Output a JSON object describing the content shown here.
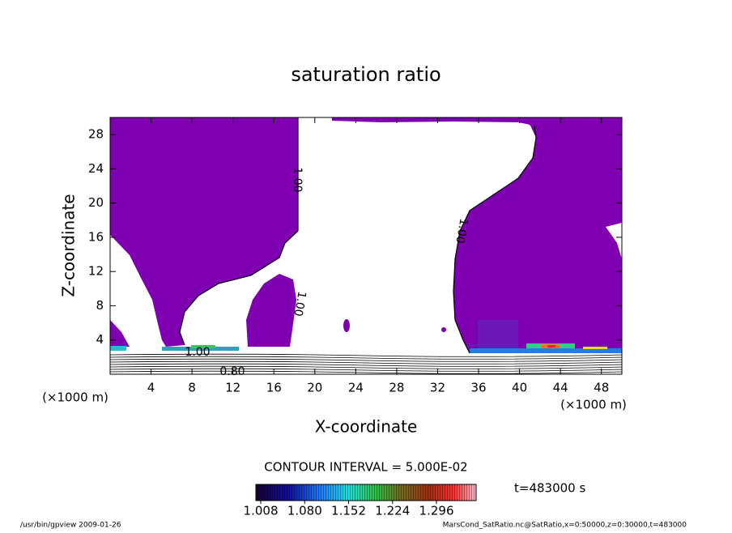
{
  "chart_data": {
    "type": "contour",
    "title": "saturation ratio",
    "x_label": "X-coordinate",
    "y_label": "Z-coordinate",
    "x_unit": "(×1000 m)",
    "y_unit": "(×1000 m)",
    "xlim": [
      0,
      50
    ],
    "ylim": [
      0,
      30
    ],
    "xticks": [
      4,
      8,
      12,
      16,
      20,
      24,
      28,
      32,
      36,
      40,
      44,
      48
    ],
    "yticks": [
      4,
      8,
      12,
      16,
      20,
      24,
      28
    ],
    "fill_color": "#7f00b0",
    "contour_interval": "CONTOUR INTERVAL = 5.000E-02",
    "contour_labels": [
      {
        "value": 1,
        "label": "1.00"
      },
      {
        "value": 1,
        "label": "1.00"
      },
      {
        "value": 1,
        "label": "1.00"
      },
      {
        "value": 1,
        "label": "1.00"
      },
      {
        "value": 0.8,
        "label": "0.80"
      }
    ],
    "colorbar": {
      "lim": [
        1.0,
        1.361
      ],
      "ticks": [
        1.008,
        {
          "value": 1.08,
          "label": "1.080"
        },
        1.152,
        1.224,
        1.296
      ]
    },
    "time_label": "t=483000 s",
    "footer_left": "/usr/bin/gpview  2009-01-26",
    "footer_right": "MarsCond_SatRatio.nc@SatRatio,x=0:50000,z=0:30000,t=483000"
  }
}
